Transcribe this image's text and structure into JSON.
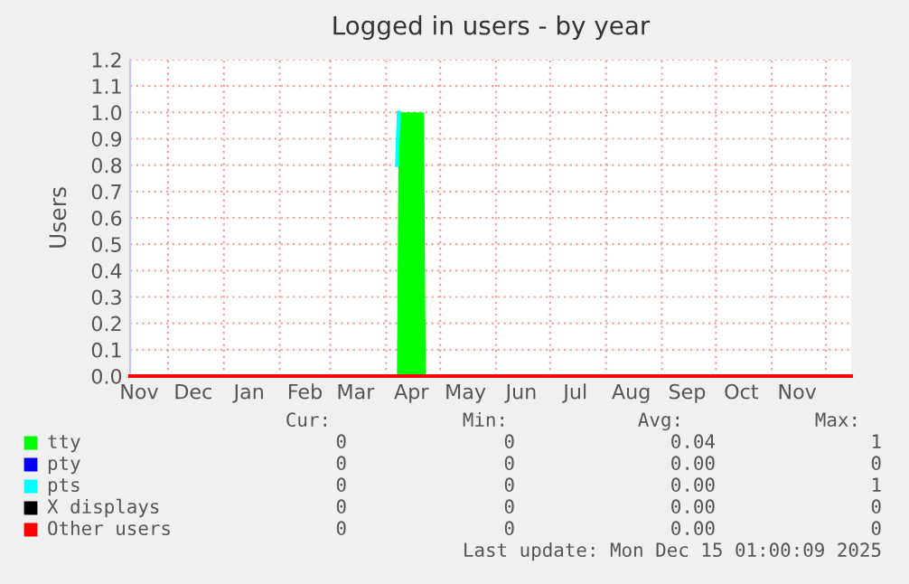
{
  "chart_data": {
    "type": "area",
    "title": "Logged in users - by year",
    "ylabel": "Users",
    "xlim": [
      "2024-11-10",
      "2025-12-15"
    ],
    "ylim": [
      0,
      1.2
    ],
    "yticks": [
      {
        "value": 0,
        "label": "0.0"
      },
      {
        "value": 0.1,
        "label": "0.1"
      },
      {
        "value": 0.2,
        "label": "0.2"
      },
      {
        "value": 0.3,
        "label": "0.3"
      },
      {
        "value": 0.4,
        "label": "0.4"
      },
      {
        "value": 0.5,
        "label": "0.5"
      },
      {
        "value": 0.6,
        "label": "0.6"
      },
      {
        "value": 0.7,
        "label": "0.7"
      },
      {
        "value": 0.8,
        "label": "0.8"
      },
      {
        "value": 0.9,
        "label": "0.9"
      },
      {
        "value": 1.0,
        "label": "1.0"
      },
      {
        "value": 1.1,
        "label": "1.1"
      },
      {
        "value": 1.2,
        "label": "1.2"
      }
    ],
    "xticks": [
      {
        "value": "2024-11-15",
        "label": "Nov"
      },
      {
        "value": "2024-12-01",
        "label": null
      },
      {
        "value": "2024-12-15",
        "label": "Dec"
      },
      {
        "value": "2025-01-01",
        "label": null
      },
      {
        "value": "2025-01-15",
        "label": "Jan"
      },
      {
        "value": "2025-02-01",
        "label": null
      },
      {
        "value": "2025-02-15",
        "label": "Feb"
      },
      {
        "value": "2025-03-01",
        "label": null
      },
      {
        "value": "2025-03-15",
        "label": "Mar"
      },
      {
        "value": "2025-04-01",
        "label": null
      },
      {
        "value": "2025-04-15",
        "label": "Apr"
      },
      {
        "value": "2025-05-01",
        "label": null
      },
      {
        "value": "2025-05-15",
        "label": "May"
      },
      {
        "value": "2025-06-01",
        "label": null
      },
      {
        "value": "2025-06-15",
        "label": "Jun"
      },
      {
        "value": "2025-07-01",
        "label": null
      },
      {
        "value": "2025-07-15",
        "label": "Jul"
      },
      {
        "value": "2025-08-01",
        "label": null
      },
      {
        "value": "2025-08-15",
        "label": "Aug"
      },
      {
        "value": "2025-09-01",
        "label": null
      },
      {
        "value": "2025-09-15",
        "label": "Sep"
      },
      {
        "value": "2025-10-01",
        "label": null
      },
      {
        "value": "2025-10-15",
        "label": "Oct"
      },
      {
        "value": "2025-11-01",
        "label": null
      },
      {
        "value": "2025-11-15",
        "label": "Nov"
      },
      {
        "value": "2025-12-01",
        "label": null
      }
    ],
    "grid": true,
    "legend": "bottom",
    "series": [
      {
        "name": "tty",
        "color": "#00ff00",
        "x": [
          "2024-11-10",
          "2025-04-07",
          "2025-04-08",
          "2025-04-22",
          "2025-04-23",
          "2025-12-15"
        ],
        "values": [
          0,
          0,
          1.0,
          1.0,
          0,
          0
        ]
      },
      {
        "name": "pty",
        "color": "#0000ff",
        "type": "line"
      },
      {
        "name": "pts",
        "color": "#00ffff",
        "type": "line",
        "x": [
          "2025-04-07",
          "2025-04-08"
        ],
        "values": [
          0.8,
          1.0
        ]
      },
      {
        "name": "X displays",
        "color": "#000000",
        "type": "line"
      },
      {
        "name": "Other users",
        "color": "#ff0000",
        "type": "line",
        "x": [
          "2024-11-10",
          "2025-12-15"
        ],
        "values": [
          0,
          0
        ]
      }
    ],
    "annotations": [
      "Cur:",
      "Min:",
      "Avg:",
      "Max:",
      "0",
      "0",
      "0.04",
      "1",
      "0",
      "0",
      "0.00",
      "0",
      "0",
      "0",
      "0.00",
      "1",
      "0",
      "0",
      "0.00",
      "0",
      "0",
      "0",
      "0.00",
      "0",
      "Last update: Mon Dec 15 01:00:09 2025"
    ]
  }
}
